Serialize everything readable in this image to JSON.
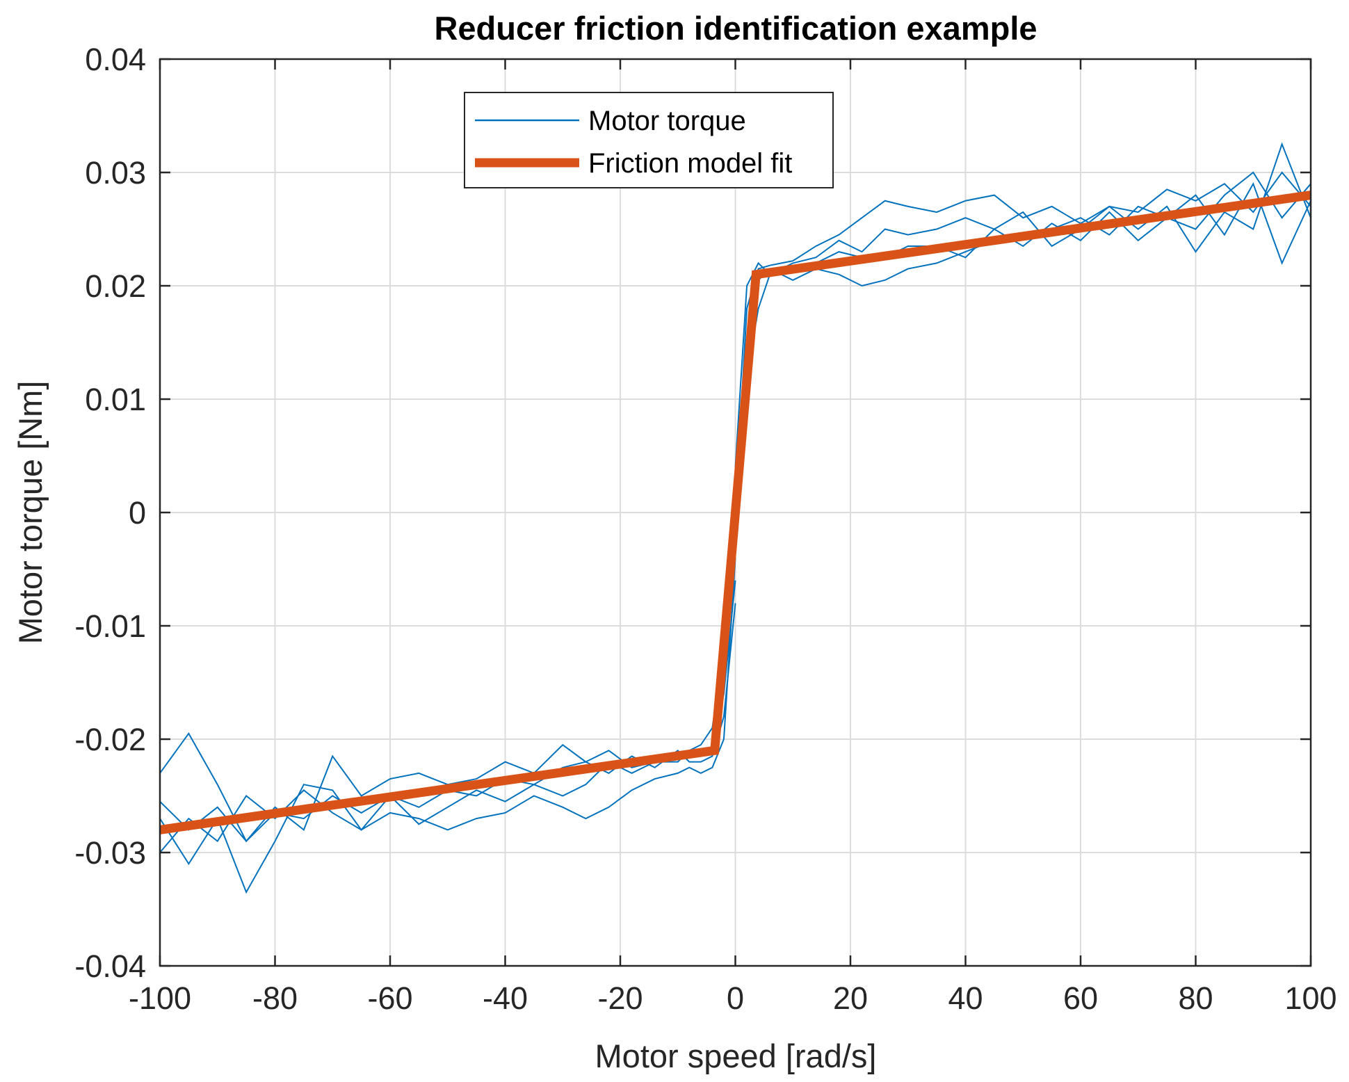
{
  "chart_data": {
    "type": "line",
    "title": "Reducer friction identification example",
    "xlabel": "Motor speed [rad/s]",
    "ylabel": "Motor torque [Nm]",
    "xlim": [
      -100,
      100
    ],
    "ylim": [
      -0.04,
      0.04
    ],
    "xticks": [
      -100,
      -80,
      -60,
      -40,
      -20,
      0,
      20,
      40,
      60,
      80,
      100
    ],
    "yticks": [
      -0.04,
      -0.03,
      -0.02,
      -0.01,
      0,
      0.01,
      0.02,
      0.03,
      0.04
    ],
    "xtick_labels": [
      "-100",
      "-80",
      "-60",
      "-40",
      "-20",
      "0",
      "20",
      "40",
      "60",
      "80",
      "100"
    ],
    "ytick_labels": [
      "-0.04",
      "-0.03",
      "-0.02",
      "-0.01",
      "0",
      "0.01",
      "0.02",
      "0.03",
      "0.04"
    ],
    "grid": true,
    "legend_placement": "top-center",
    "series": [
      {
        "name": "Motor torque",
        "color": "#0072BD",
        "traces": [
          {
            "x": [
              0,
              2,
              4,
              6,
              8,
              10,
              14,
              18,
              22,
              26,
              30,
              35,
              40,
              45,
              50,
              55,
              60,
              65,
              70,
              75,
              80,
              85,
              90,
              95,
              100
            ],
            "y": [
              0.0,
              0.018,
              0.0215,
              0.0218,
              0.022,
              0.0222,
              0.0235,
              0.0245,
              0.026,
              0.0275,
              0.027,
              0.0265,
              0.0275,
              0.028,
              0.026,
              0.027,
              0.0255,
              0.027,
              0.0265,
              0.0285,
              0.0275,
              0.029,
              0.0265,
              0.03,
              0.027
            ]
          },
          {
            "x": [
              0,
              2,
              4,
              6,
              8,
              10,
              14,
              18,
              22,
              26,
              30,
              35,
              40,
              45,
              50,
              55,
              60,
              65,
              70,
              75,
              80,
              85,
              90,
              95,
              100
            ],
            "y": [
              0.002,
              0.012,
              0.018,
              0.021,
              0.021,
              0.0205,
              0.0215,
              0.021,
              0.02,
              0.0205,
              0.0215,
              0.022,
              0.023,
              0.024,
              0.0245,
              0.025,
              0.026,
              0.0245,
              0.027,
              0.026,
              0.025,
              0.028,
              0.03,
              0.026,
              0.029
            ]
          },
          {
            "x": [
              0,
              2,
              4,
              6,
              8,
              10,
              14,
              18,
              22,
              26,
              30,
              35,
              40,
              45,
              50,
              55,
              60,
              65,
              70,
              75,
              80,
              85,
              90,
              95,
              100
            ],
            "y": [
              0.004,
              0.02,
              0.022,
              0.021,
              0.0215,
              0.022,
              0.0225,
              0.024,
              0.023,
              0.025,
              0.0245,
              0.025,
              0.026,
              0.025,
              0.0265,
              0.0235,
              0.025,
              0.027,
              0.025,
              0.027,
              0.023,
              0.0265,
              0.025,
              0.0325,
              0.026
            ]
          },
          {
            "x": [
              0,
              2,
              4,
              6,
              8,
              10,
              14,
              18,
              22,
              26,
              30,
              35,
              40,
              45,
              50,
              55,
              60,
              65,
              70,
              75,
              80,
              85,
              90,
              95,
              100
            ],
            "y": [
              0.001,
              0.015,
              0.0205,
              0.0215,
              0.021,
              0.0215,
              0.022,
              0.023,
              0.0225,
              0.0225,
              0.0235,
              0.0235,
              0.0225,
              0.025,
              0.0235,
              0.0255,
              0.024,
              0.0265,
              0.024,
              0.026,
              0.028,
              0.0245,
              0.029,
              0.022,
              0.0275
            ]
          },
          {
            "x": [
              0,
              -2,
              -4,
              -6,
              -8,
              -10,
              -14,
              -18,
              -22,
              -26,
              -30,
              -35,
              -40,
              -45,
              -50,
              -55,
              -60,
              -65,
              -70,
              -75,
              -80,
              -85,
              -90,
              -95,
              -100
            ],
            "y": [
              -0.006,
              -0.016,
              -0.021,
              -0.0215,
              -0.021,
              -0.0215,
              -0.022,
              -0.0225,
              -0.021,
              -0.022,
              -0.0225,
              -0.024,
              -0.0235,
              -0.025,
              -0.0245,
              -0.026,
              -0.025,
              -0.0265,
              -0.025,
              -0.027,
              -0.0265,
              -0.029,
              -0.026,
              -0.028,
              -0.0255
            ]
          },
          {
            "x": [
              0,
              -2,
              -4,
              -6,
              -8,
              -10,
              -14,
              -18,
              -22,
              -26,
              -30,
              -35,
              -40,
              -45,
              -50,
              -55,
              -60,
              -65,
              -70,
              -75,
              -80,
              -85,
              -90,
              -95,
              -100
            ],
            "y": [
              -0.004,
              -0.02,
              -0.0225,
              -0.023,
              -0.0225,
              -0.023,
              -0.0235,
              -0.0245,
              -0.026,
              -0.027,
              -0.026,
              -0.025,
              -0.0265,
              -0.027,
              -0.028,
              -0.027,
              -0.0265,
              -0.028,
              -0.0265,
              -0.0245,
              -0.027,
              -0.025,
              -0.029,
              -0.027,
              -0.03
            ]
          },
          {
            "x": [
              0,
              -2,
              -4,
              -6,
              -8,
              -10,
              -14,
              -18,
              -22,
              -26,
              -30,
              -35,
              -40,
              -45,
              -50,
              -55,
              -60,
              -65,
              -70,
              -75,
              -80,
              -85,
              -90,
              -95,
              -100
            ],
            "y": [
              -0.008,
              -0.018,
              -0.0215,
              -0.022,
              -0.022,
              -0.021,
              -0.0225,
              -0.0215,
              -0.023,
              -0.022,
              -0.0205,
              -0.023,
              -0.022,
              -0.0235,
              -0.024,
              -0.023,
              -0.0235,
              -0.025,
              -0.0215,
              -0.028,
              -0.026,
              -0.029,
              -0.024,
              -0.0195,
              -0.023
            ]
          },
          {
            "x": [
              0,
              -2,
              -4,
              -6,
              -8,
              -10,
              -14,
              -18,
              -22,
              -26,
              -30,
              -35,
              -40,
              -45,
              -50,
              -55,
              -60,
              -65,
              -70,
              -75,
              -80,
              -85,
              -90,
              -95,
              -100
            ],
            "y": [
              -0.003,
              -0.012,
              -0.019,
              -0.0205,
              -0.021,
              -0.022,
              -0.022,
              -0.023,
              -0.022,
              -0.024,
              -0.025,
              -0.024,
              -0.0255,
              -0.0245,
              -0.026,
              -0.0275,
              -0.025,
              -0.028,
              -0.0245,
              -0.024,
              -0.029,
              -0.0335,
              -0.027,
              -0.031,
              -0.027
            ]
          }
        ]
      },
      {
        "name": "Friction model fit",
        "color": "#D95319",
        "x": [
          -100,
          -3.6,
          3.6,
          100
        ],
        "y": [
          -0.028,
          -0.021,
          0.021,
          0.028
        ]
      }
    ]
  }
}
